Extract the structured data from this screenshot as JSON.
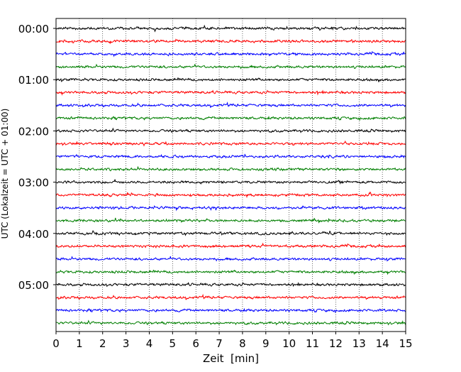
{
  "chart_data": {
    "type": "line",
    "subtype": "helicorder",
    "xlabel": "Zeit  [min]",
    "ylabel": "UTC (Lokalzeit = UTC + 01:00)",
    "xlim": [
      0,
      15
    ],
    "x_ticks": [
      "0",
      "1",
      "2",
      "3",
      "4",
      "5",
      "6",
      "7",
      "8",
      "9",
      "10",
      "11",
      "12",
      "13",
      "14",
      "15"
    ],
    "y_ticks": [
      "00:00",
      "01:00",
      "02:00",
      "03:00",
      "04:00",
      "05:00"
    ],
    "grid": "vertical dotted lines at each minute",
    "trace_colors": [
      "#000000",
      "#ff0000",
      "#0000ff",
      "#007f00"
    ],
    "traces": [
      {
        "start": "00:00",
        "color": "#000000"
      },
      {
        "start": "00:15",
        "color": "#ff0000"
      },
      {
        "start": "00:30",
        "color": "#0000ff"
      },
      {
        "start": "00:45",
        "color": "#007f00"
      },
      {
        "start": "01:00",
        "color": "#000000"
      },
      {
        "start": "01:15",
        "color": "#ff0000"
      },
      {
        "start": "01:30",
        "color": "#0000ff"
      },
      {
        "start": "01:45",
        "color": "#007f00"
      },
      {
        "start": "02:00",
        "color": "#000000"
      },
      {
        "start": "02:15",
        "color": "#ff0000"
      },
      {
        "start": "02:30",
        "color": "#0000ff"
      },
      {
        "start": "02:45",
        "color": "#007f00"
      },
      {
        "start": "03:00",
        "color": "#000000"
      },
      {
        "start": "03:15",
        "color": "#ff0000"
      },
      {
        "start": "03:30",
        "color": "#0000ff"
      },
      {
        "start": "03:45",
        "color": "#007f00"
      },
      {
        "start": "04:00",
        "color": "#000000"
      },
      {
        "start": "04:15",
        "color": "#ff0000"
      },
      {
        "start": "04:30",
        "color": "#0000ff"
      },
      {
        "start": "04:45",
        "color": "#007f00"
      },
      {
        "start": "05:00",
        "color": "#000000"
      },
      {
        "start": "05:15",
        "color": "#ff0000"
      },
      {
        "start": "05:30",
        "color": "#0000ff"
      },
      {
        "start": "05:45",
        "color": "#007f00"
      }
    ]
  }
}
